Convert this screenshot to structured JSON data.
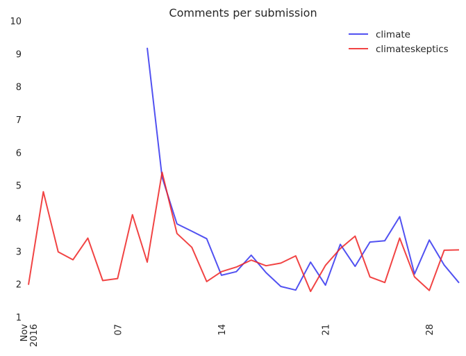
{
  "chart_data": {
    "type": "line",
    "title": "Comments per submission",
    "xlabel": "",
    "ylabel": "",
    "ylim": [
      1,
      10
    ],
    "yticks": [
      1,
      2,
      3,
      4,
      5,
      6,
      7,
      8,
      9,
      10
    ],
    "xlim": [
      "2016-11-01",
      "2016-11-30"
    ],
    "xticks": [
      {
        "date": "2016-11-01",
        "label": "Nov\n2016"
      },
      {
        "date": "2016-11-07",
        "label": "07"
      },
      {
        "date": "2016-11-14",
        "label": "14"
      },
      {
        "date": "2016-11-21",
        "label": "21"
      },
      {
        "date": "2016-11-28",
        "label": "28"
      }
    ],
    "grid": false,
    "legend": "top-right",
    "series": [
      {
        "name": "climate",
        "color": "#3333ee",
        "points": [
          [
            "2016-11-09",
            9.18
          ],
          [
            "2016-11-10",
            5.25
          ],
          [
            "2016-11-11",
            3.83
          ],
          [
            "2016-11-12",
            3.61
          ],
          [
            "2016-11-13",
            3.38
          ],
          [
            "2016-11-14",
            2.27
          ],
          [
            "2016-11-15",
            2.38
          ],
          [
            "2016-11-16",
            2.88
          ],
          [
            "2016-11-17",
            2.35
          ],
          [
            "2016-11-18",
            1.93
          ],
          [
            "2016-11-19",
            1.82
          ],
          [
            "2016-11-20",
            2.67
          ],
          [
            "2016-11-21",
            1.97
          ],
          [
            "2016-11-22",
            3.21
          ],
          [
            "2016-11-23",
            2.54
          ],
          [
            "2016-11-24",
            3.28
          ],
          [
            "2016-11-25",
            3.32
          ],
          [
            "2016-11-26",
            4.05
          ],
          [
            "2016-11-27",
            2.31
          ],
          [
            "2016-11-28",
            3.34
          ],
          [
            "2016-11-29",
            2.58
          ],
          [
            "2016-11-30",
            2.04
          ]
        ]
      },
      {
        "name": "climateskeptics",
        "color": "#ee2222",
        "points": [
          [
            "2016-11-01",
            1.98
          ],
          [
            "2016-11-02",
            4.81
          ],
          [
            "2016-11-03",
            2.98
          ],
          [
            "2016-11-04",
            2.74
          ],
          [
            "2016-11-05",
            3.4
          ],
          [
            "2016-11-06",
            2.11
          ],
          [
            "2016-11-07",
            2.17
          ],
          [
            "2016-11-08",
            4.11
          ],
          [
            "2016-11-09",
            2.67
          ],
          [
            "2016-11-10",
            5.4
          ],
          [
            "2016-11-11",
            3.54
          ],
          [
            "2016-11-12",
            3.12
          ],
          [
            "2016-11-13",
            2.08
          ],
          [
            "2016-11-14",
            2.38
          ],
          [
            "2016-11-15",
            2.52
          ],
          [
            "2016-11-16",
            2.73
          ],
          [
            "2016-11-17",
            2.56
          ],
          [
            "2016-11-18",
            2.64
          ],
          [
            "2016-11-19",
            2.86
          ],
          [
            "2016-11-20",
            1.78
          ],
          [
            "2016-11-21",
            2.57
          ],
          [
            "2016-11-22",
            3.08
          ],
          [
            "2016-11-23",
            3.46
          ],
          [
            "2016-11-24",
            2.22
          ],
          [
            "2016-11-25",
            2.05
          ],
          [
            "2016-11-26",
            3.4
          ],
          [
            "2016-11-27",
            2.22
          ],
          [
            "2016-11-28",
            1.81
          ],
          [
            "2016-11-29",
            3.03
          ],
          [
            "2016-11-30",
            3.04
          ]
        ]
      }
    ]
  }
}
